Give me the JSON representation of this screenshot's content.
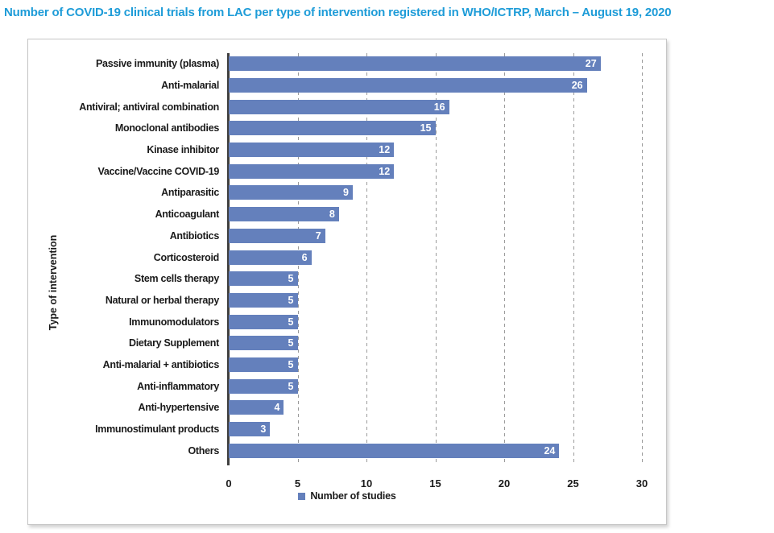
{
  "page": {
    "title": "Number of COVID-19 clinical trials from LAC per type of intervention registered in WHO/ICTRP, March – August 19, 2020"
  },
  "chart_data": {
    "type": "bar",
    "orientation": "horizontal",
    "title": "Number of COVID-19 clinical trials from LAC per type of intervention registered in WHO/ICTRP, March – August 19, 2020",
    "categories": [
      "Passive immunity (plasma)",
      "Anti-malarial",
      "Antiviral; antiviral combination",
      "Monoclonal antibodies",
      "Kinase inhibitor",
      "Vaccine/Vaccine COVID-19",
      "Antiparasitic",
      "Anticoagulant",
      "Antibiotics",
      "Corticosteroid",
      "Stem cells therapy",
      "Natural or herbal therapy",
      "Immunomodulators",
      "Dietary Supplement",
      "Anti-malarial + antibiotics",
      "Anti-inflammatory",
      "Anti-hypertensive",
      "Immunostimulant products",
      "Others"
    ],
    "values": [
      27,
      26,
      16,
      15,
      12,
      12,
      9,
      8,
      7,
      6,
      5,
      5,
      5,
      5,
      5,
      5,
      4,
      3,
      24
    ],
    "xlabel": "",
    "ylabel": "Type of intervention",
    "legend": "Number of studies",
    "xticks": [
      0,
      5,
      10,
      15,
      20,
      25,
      30
    ],
    "xlim": [
      0,
      30
    ],
    "grid": "vertical-dashed",
    "legend_position": "bottom-center",
    "value_labels": "inside-end-white",
    "colors": {
      "bar": "#6480BC",
      "title": "#1E9CD8",
      "grid": "#9B9B9B",
      "axis_line": "#3F3F3F",
      "text": "#1A1A1A",
      "value_label": "#FFFFFF",
      "panel_border": "#C6C6C6"
    }
  }
}
